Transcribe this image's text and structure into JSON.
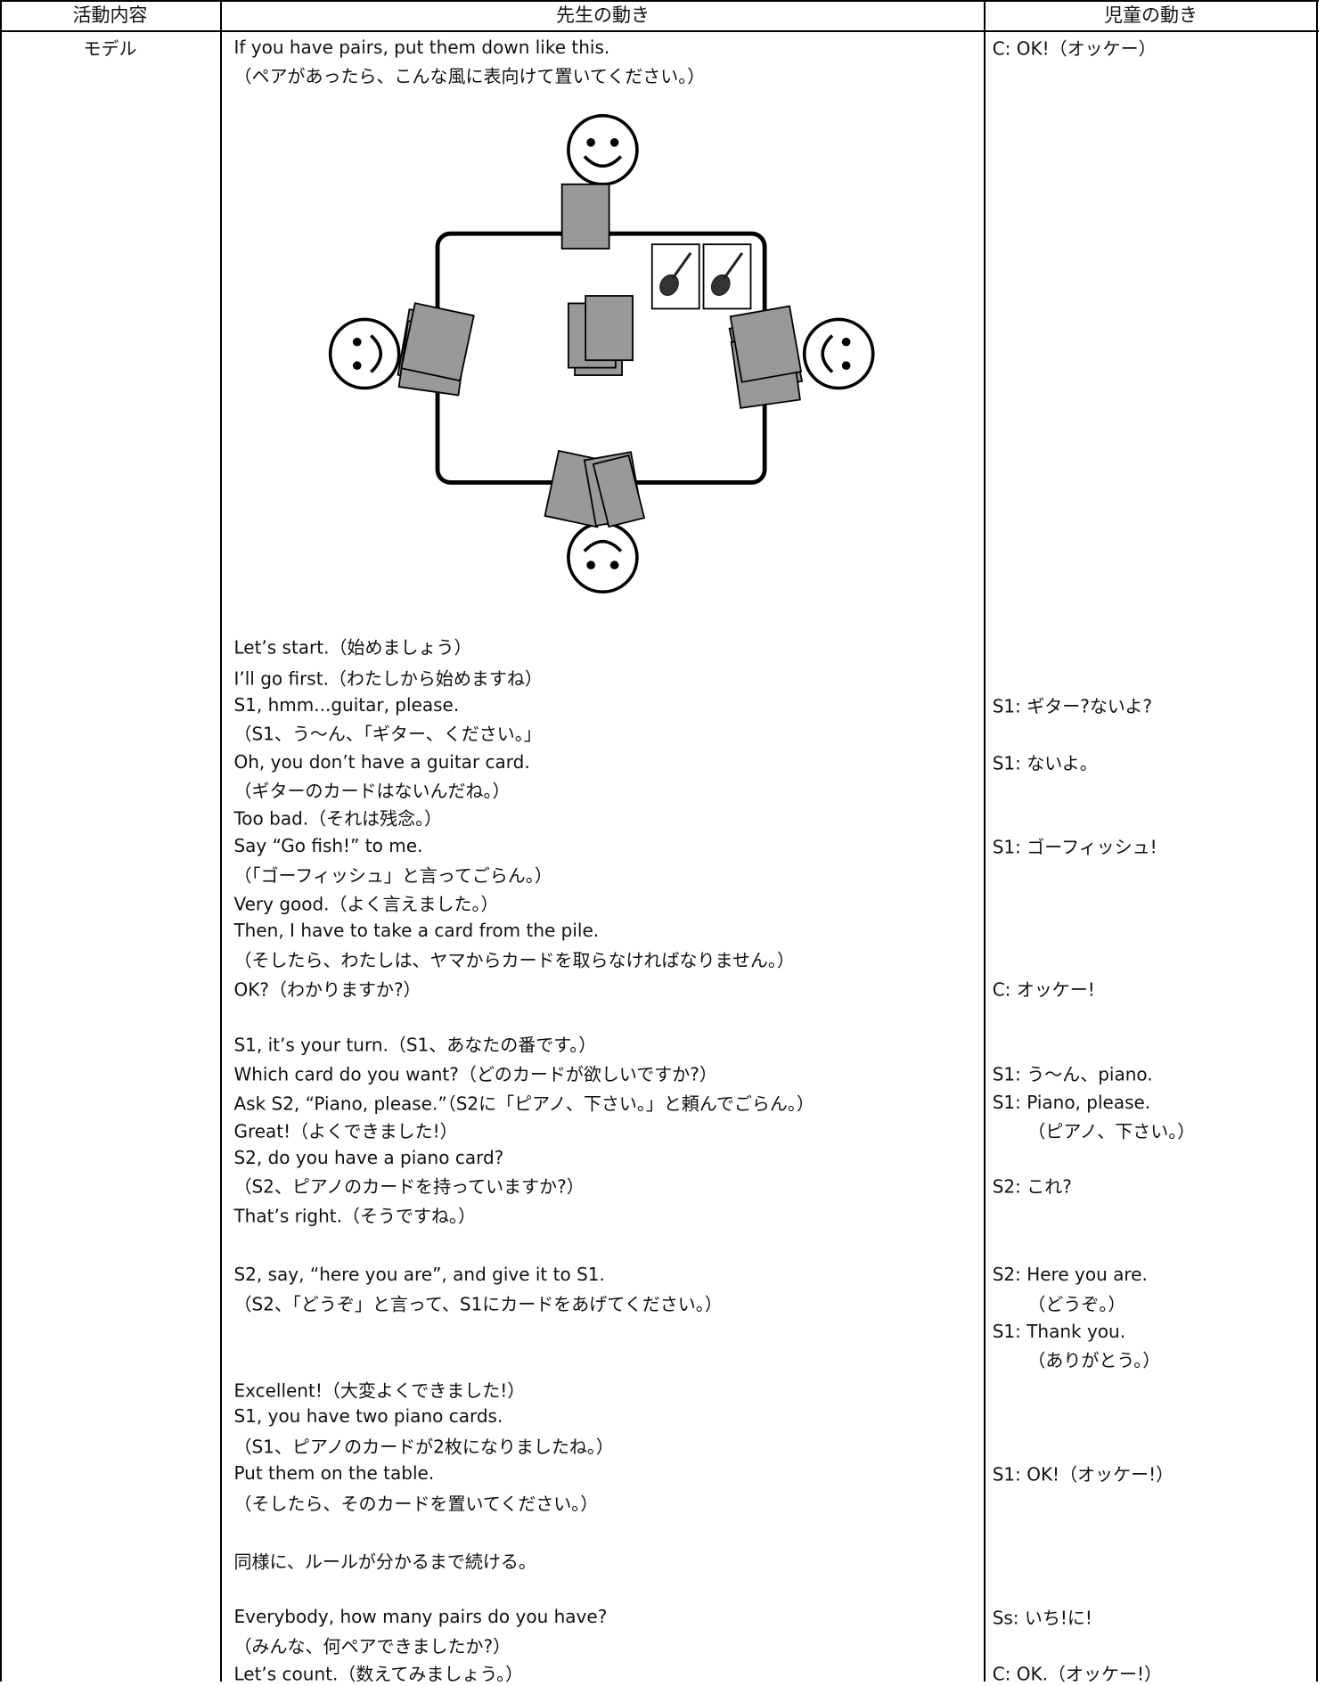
{
  "header": {
    "columns": [
      "活動内容",
      "先生の動き",
      "児童の動き"
    ]
  },
  "row": {
    "activity": "モデル",
    "teacher_lines": [
      "If you have pairs, put them down like this.",
      "（ペアがあったら、こんな風に表向けて置いてください。）",
      "Let’s start.（始めましょう）",
      "I’ll go first.（わたしから始めますね）",
      "S1, hmm...guitar, please.",
      "（S1、う～ん、「ギター、ください。」",
      "Oh, you don’t have a guitar card.",
      "（ギターのカードはないんだね。）",
      "Too bad.（それは残念。）",
      "Say “Go fish!” to me.",
      "（「ゴーフィッシュ」と言ってごらん。）",
      "Very good.（よく言えました。）",
      "Then, I have to take a card from the pile.",
      "（そしたら、わたしは、ヤマからカードを取らなければなりません。）",
      "OK?（わかりますか?）",
      "S1, it’s your turn.（S1、あなたの番です。）",
      "Which card do you want?（どのカードが欲しいですか?）",
      "Ask S2, “Piano, please.”（S2に「ピアノ、下さい。」と頼んでごらん。）",
      "Great!（よくできました!）",
      "S2, do you have a piano card?",
      "（S2、ピアノのカードを持っていますか?）",
      "That’s right.（そうですね。）",
      "S2, say, “here you are”, and give it to S1.",
      "（S2、「どうぞ」と言って、S1にカードをあげてください。）",
      "Excellent!（大変よくできました!）",
      "S1, you have two piano cards.",
      "（S1、ピアノのカードが2枚になりましたね。）",
      "Put them on the table.",
      "（そしたら、そのカードを置いてください。）",
      "同様に、ルールが分かるまで続ける。",
      "Everybody, how many pairs do you have?",
      "（みんな、何ペアできましたか?）",
      "Let’s count.（数えてみましょう。）"
    ],
    "child_lines": [
      "C: OK!（オッケー）",
      "S1: ギター?ないよ?",
      "S1: ないよ。",
      "S1: ゴーフィッシュ!",
      "C: オッケー!",
      "S1: う～ん、piano.",
      "S1: Piano, please.",
      "（ピアノ、下さい。）",
      "S2: これ?",
      "S2: Here you are.",
      "（どうぞ。）",
      "S1: Thank you.",
      "（ありがとう。）",
      "S1: OK!（オッケー!）",
      "Ss: いち!に!",
      "C: OK.（オッケー!）"
    ]
  }
}
